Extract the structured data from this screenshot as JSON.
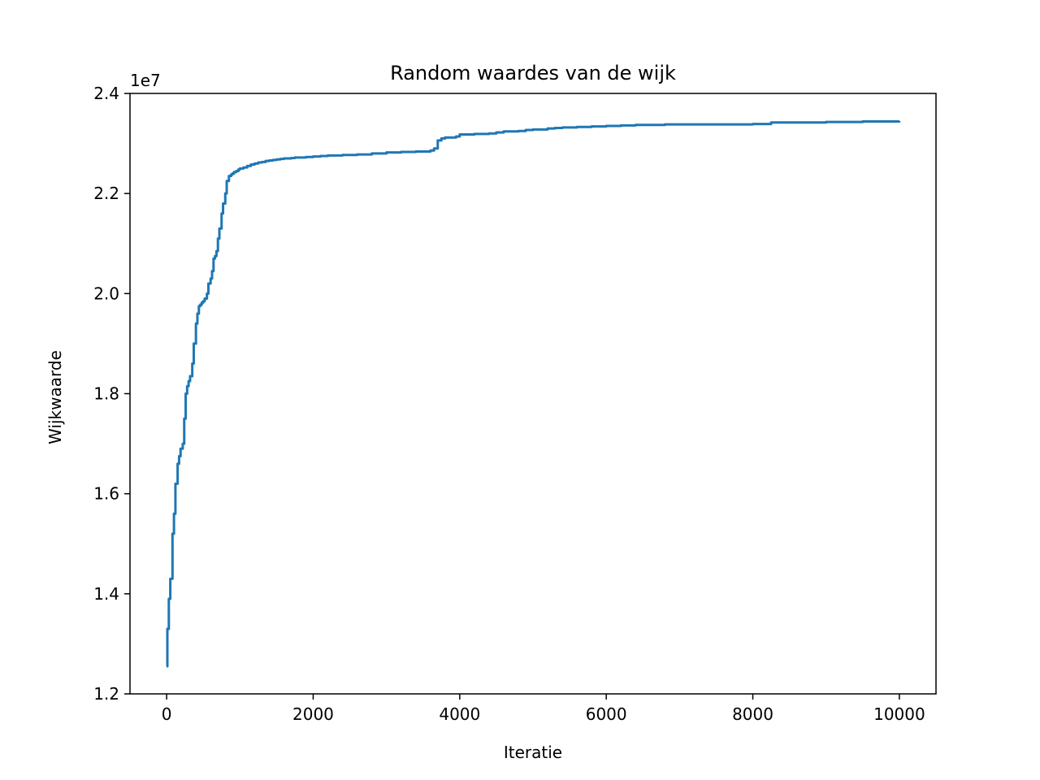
{
  "chart_data": {
    "type": "line",
    "title": "Random waardes van de wijk",
    "xlabel": "Iteratie",
    "ylabel": "Wijkwaarde",
    "y_offset_label": "1e7",
    "xlim": [
      -500,
      10500
    ],
    "ylim": [
      1.2,
      2.4
    ],
    "y_scale_factor": 10000000,
    "x_ticks": [
      0,
      2000,
      4000,
      6000,
      8000,
      10000
    ],
    "x_tick_labels": [
      "0",
      "2000",
      "4000",
      "6000",
      "8000",
      "10000"
    ],
    "y_ticks": [
      1.2,
      1.4,
      1.6,
      1.8,
      2.0,
      2.2,
      2.4
    ],
    "y_tick_labels": [
      "1.2",
      "1.4",
      "1.6",
      "1.8",
      "2.0",
      "2.2",
      "2.4"
    ],
    "grid": false,
    "legend": "none",
    "line_color": "#1f77b4",
    "series": [
      {
        "x": [
          0,
          10,
          30,
          50,
          80,
          100,
          120,
          150,
          170,
          190,
          220,
          240,
          260,
          280,
          300,
          320,
          350,
          370,
          400,
          420,
          440,
          460,
          480,
          500,
          520,
          550,
          570,
          600,
          620,
          640,
          660,
          680,
          700,
          720,
          750,
          770,
          800,
          820,
          850,
          880,
          900,
          920,
          950,
          980,
          1000,
          1050,
          1100,
          1150,
          1200,
          1250,
          1300,
          1350,
          1400,
          1450,
          1500,
          1550,
          1600,
          1650,
          1700,
          1750,
          1800,
          1900,
          2000,
          2100,
          2200,
          2400,
          2600,
          2800,
          3000,
          3200,
          3400,
          3600,
          3650,
          3700,
          3750,
          3800,
          3950,
          4000,
          4200,
          4400,
          4500,
          4600,
          4800,
          4900,
          5000,
          5200,
          5300,
          5400,
          5600,
          5800,
          6000,
          6200,
          6400,
          6600,
          6800,
          7000,
          7500,
          8000,
          8250,
          8300,
          8600,
          9000,
          9400,
          9500,
          9800,
          10000
        ],
        "y": [
          1.255,
          1.33,
          1.39,
          1.43,
          1.52,
          1.56,
          1.62,
          1.66,
          1.675,
          1.69,
          1.7,
          1.75,
          1.8,
          1.815,
          1.825,
          1.835,
          1.86,
          1.9,
          1.94,
          1.96,
          1.975,
          1.978,
          1.982,
          1.985,
          1.99,
          2.0,
          2.02,
          2.03,
          2.045,
          2.07,
          2.075,
          2.085,
          2.11,
          2.13,
          2.16,
          2.18,
          2.2,
          2.225,
          2.235,
          2.238,
          2.24,
          2.243,
          2.245,
          2.248,
          2.25,
          2.252,
          2.255,
          2.258,
          2.26,
          2.262,
          2.263,
          2.265,
          2.266,
          2.267,
          2.268,
          2.269,
          2.27,
          2.27,
          2.271,
          2.272,
          2.272,
          2.273,
          2.274,
          2.275,
          2.276,
          2.277,
          2.278,
          2.28,
          2.282,
          2.283,
          2.284,
          2.286,
          2.29,
          2.306,
          2.31,
          2.312,
          2.314,
          2.318,
          2.319,
          2.32,
          2.322,
          2.324,
          2.325,
          2.327,
          2.328,
          2.33,
          2.331,
          2.332,
          2.333,
          2.334,
          2.335,
          2.336,
          2.337,
          2.337,
          2.338,
          2.338,
          2.338,
          2.339,
          2.342,
          2.342,
          2.342,
          2.343,
          2.343,
          2.344,
          2.344,
          2.345
        ]
      }
    ]
  }
}
